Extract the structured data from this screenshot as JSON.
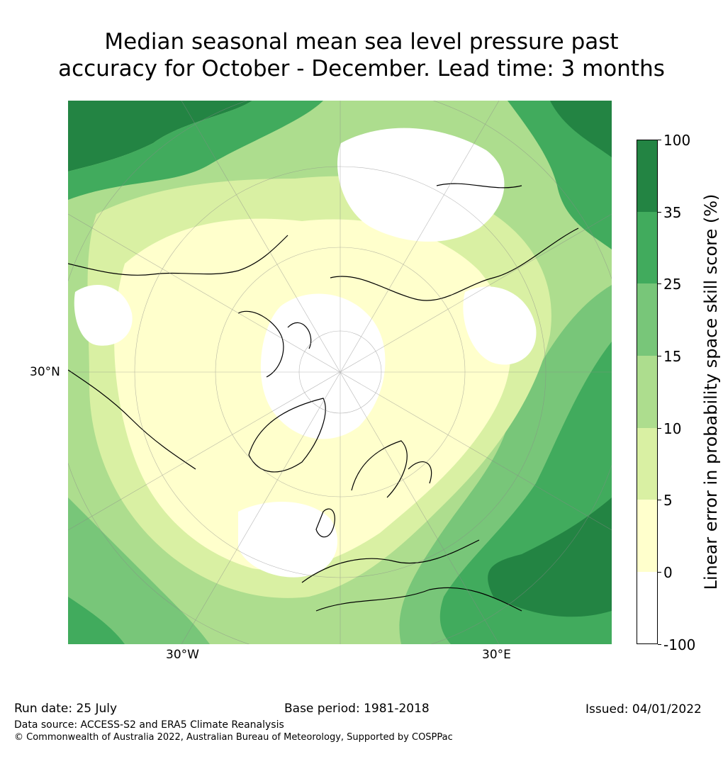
{
  "title_line1": "Median seasonal mean sea level pressure past",
  "title_line2": "accuracy for October - December. Lead time: 3 months",
  "map": {
    "lat_label": "30°N",
    "lon_label_west": "30°W",
    "lon_label_east": "30°E",
    "colors": {
      "c_neg": "#ffffff",
      "c0": "#ffffcc",
      "c5": "#d9f0a3",
      "c10": "#addd8e",
      "c15": "#78c679",
      "c25": "#41ab5d",
      "c35": "#238443",
      "coast": "#000000",
      "grid": "#888888"
    }
  },
  "colorbar": {
    "title": "Linear error in probability space skill score (%)",
    "ticks": [
      "100",
      "35",
      "25",
      "15",
      "10",
      "5",
      "0",
      "-100"
    ],
    "band_colors": [
      "#238443",
      "#41ab5d",
      "#78c679",
      "#addd8e",
      "#d9f0a3",
      "#ffffcc",
      "#ffffff"
    ]
  },
  "footer": {
    "run_date": "Run date: 25 July",
    "base_period": "Base period: 1981-2018",
    "issued": "Issued: 04/01/2022",
    "data_source": "Data source: ACCESS-S2 and ERA5 Climate Reanalysis",
    "copyright": "© Commonwealth of Australia 2022, Australian Bureau of Meteorology, Supported by COSPPac"
  }
}
